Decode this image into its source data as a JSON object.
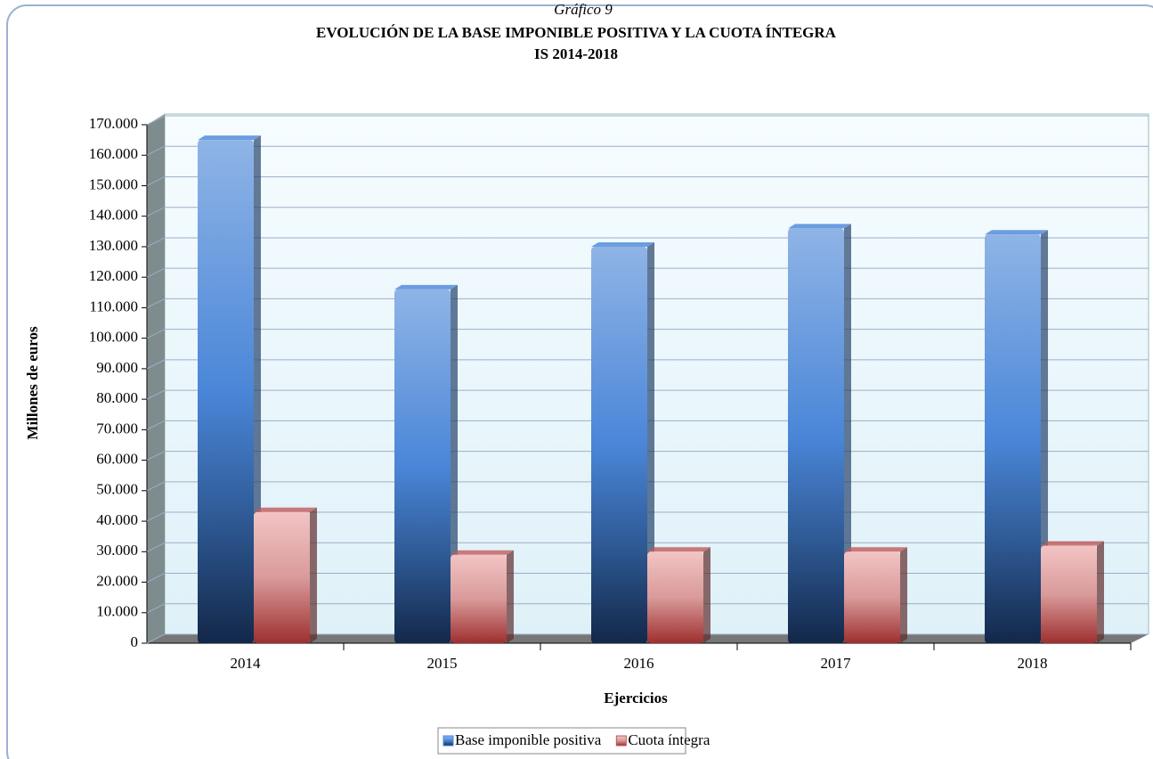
{
  "chart_data": {
    "type": "bar",
    "label": "Gráfico 9",
    "title": "EVOLUCIÓN DE LA BASE IMPONIBLE POSITIVA Y LA CUOTA ÍNTEGRA",
    "subtitle": "IS 2014-2018",
    "y_label": "Millones de euros",
    "x_label": "Ejercicios",
    "categories": [
      "2014",
      "2015",
      "2016",
      "2017",
      "2018"
    ],
    "series": [
      {
        "name": "Base imponible positiva",
        "color": "#4a86d8",
        "values": [
          165000,
          116000,
          130000,
          136000,
          134000
        ]
      },
      {
        "name": "Cuota íntegra",
        "color": "#c05a5a",
        "values": [
          43000,
          29000,
          30000,
          30000,
          32000
        ]
      }
    ],
    "ylim": [
      0,
      170000
    ],
    "yticks": [
      0,
      {
        "value": 10000,
        "label": "10.000"
      },
      {
        "value": 20000,
        "label": "20.000"
      },
      {
        "value": 30000,
        "label": "30.000"
      },
      {
        "value": 40000,
        "label": "40.000"
      },
      {
        "value": 50000,
        "label": "50.000"
      },
      {
        "value": 60000,
        "label": "60.000"
      },
      {
        "value": 70000,
        "label": "70.000"
      },
      {
        "value": 80000,
        "label": "80.000"
      },
      {
        "value": 90000,
        "label": "90.000"
      },
      {
        "value": 100000,
        "label": "100.000"
      },
      {
        "value": 110000,
        "label": "110.000"
      },
      {
        "value": 120000,
        "label": "120.000"
      },
      {
        "value": 130000,
        "label": "130.000"
      },
      {
        "value": 140000,
        "label": "140.000"
      },
      {
        "value": 150000,
        "label": "150.000"
      },
      {
        "value": 160000,
        "label": "160.000"
      },
      {
        "value": 170000,
        "label": "170.000"
      }
    ],
    "grid": true,
    "legend": "bottom"
  }
}
